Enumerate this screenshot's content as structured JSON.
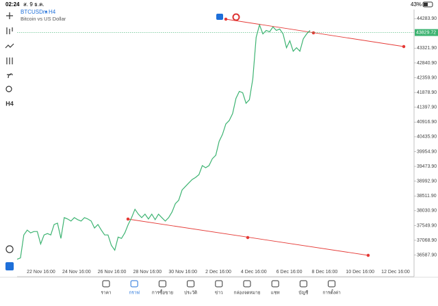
{
  "status_bar": {
    "time": "02:24",
    "date": "ส. 9 ธ.ค.",
    "battery": "43%"
  },
  "toolbar": {
    "timeframe": "H4"
  },
  "chart_data": {
    "type": "line",
    "symbol": "BTCUSDm",
    "period": "H4",
    "description": "Bitcoin vs US Dollar",
    "color": "#3cb371",
    "current_price": 43829.72,
    "ylim": [
      35888,
      44577
    ],
    "yticks": [
      {
        "value": 44283.9,
        "label": "44283.90"
      },
      {
        "value": 43321.9,
        "label": "43321.90"
      },
      {
        "value": 42840.9,
        "label": "42840.90"
      },
      {
        "value": 42359.9,
        "label": "42359.90"
      },
      {
        "value": 41878.9,
        "label": "41878.90"
      },
      {
        "value": 41397.9,
        "label": "41397.90"
      },
      {
        "value": 40916.9,
        "label": "40916.90"
      },
      {
        "value": 40435.9,
        "label": "40435.90"
      },
      {
        "value": 39954.9,
        "label": "39954.90"
      },
      {
        "value": 39473.9,
        "label": "39473.90"
      },
      {
        "value": 38992.9,
        "label": "38992.90"
      },
      {
        "value": 38511.9,
        "label": "38511.90"
      },
      {
        "value": 38030.9,
        "label": "38030.90"
      },
      {
        "value": 37549.9,
        "label": "37549.90"
      },
      {
        "value": 37068.9,
        "label": "37068.90"
      },
      {
        "value": 36587.9,
        "label": "36587.90"
      }
    ],
    "x_labels": [
      "22 Nov 16:00",
      "24 Nov 16:00",
      "26 Nov 16:00",
      "28 Nov 16:00",
      "30 Nov 16:00",
      "2 Dec 16:00",
      "4 Dec 16:00",
      "6 Dec 16:00",
      "8 Dec 16:00",
      "10 Dec 16:00",
      "12 Dec 16:00"
    ],
    "values": [
      36452,
      36497,
      37242,
      37400,
      37310,
      37355,
      37355,
      36948,
      37242,
      37287,
      37242,
      37581,
      37626,
      37129,
      37806,
      37761,
      37694,
      37806,
      37739,
      37694,
      37806,
      37761,
      37694,
      37468,
      37581,
      37400,
      37242,
      37242,
      36903,
      36745,
      37174,
      37129,
      37310,
      37581,
      37806,
      38077,
      37919,
      37806,
      37919,
      37761,
      37919,
      37739,
      37919,
      37806,
      37694,
      37806,
      37987,
      38258,
      38370,
      38709,
      38822,
      38935,
      39048,
      39115,
      39206,
      39499,
      39431,
      39499,
      39724,
      39837,
      40289,
      40515,
      40853,
      40966,
      41192,
      41688,
      41914,
      41869,
      41530,
      41643,
      42320,
      43675,
      44081,
      43787,
      43900,
      43855,
      44013,
      43900,
      43945,
      43787,
      43336,
      43562,
      43223,
      43336,
      43223,
      43629,
      43787,
      43900
    ]
  },
  "nav": {
    "tabs": [
      "ราคา",
      "กราฟ",
      "การซื้อขาย",
      "ประวัติ",
      "ข่าว",
      "กล่องจดหมาย",
      "แชท",
      "บัญชี",
      "การตั้งค่า"
    ],
    "active": 1
  }
}
